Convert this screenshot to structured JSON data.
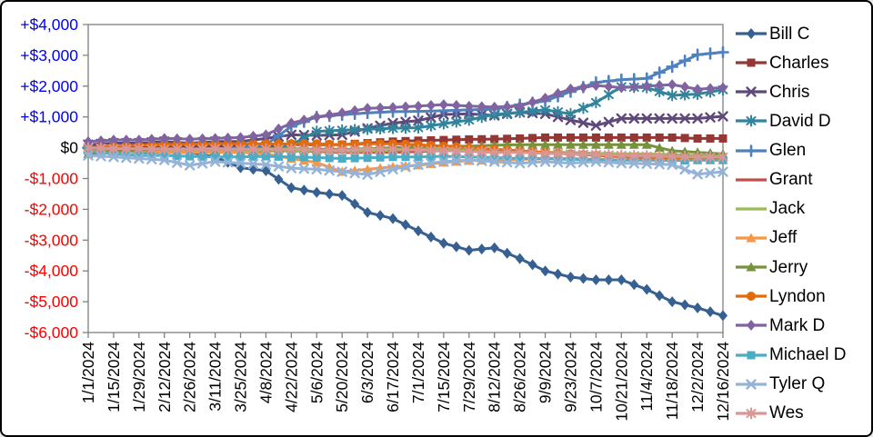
{
  "chart_data": {
    "type": "line",
    "title": "",
    "xlabel": "",
    "ylabel": "",
    "grid": false,
    "legend_position": "right",
    "ylim": [
      -6000,
      4000
    ],
    "y_ticks": [
      {
        "label": "+$4,000",
        "value": 4000
      },
      {
        "label": "+$3,000",
        "value": 3000
      },
      {
        "label": "+$2,000",
        "value": 2000
      },
      {
        "label": "+$1,000",
        "value": 1000
      },
      {
        "label": "$0",
        "value": 0
      },
      {
        "label": "-$1,000",
        "value": -1000
      },
      {
        "label": "-$2,000",
        "value": -2000
      },
      {
        "label": "-$3,000",
        "value": -3000
      },
      {
        "label": "-$4,000",
        "value": -4000
      },
      {
        "label": "-$5,000",
        "value": -5000
      },
      {
        "label": "-$6,000",
        "value": -6000
      }
    ],
    "axis_label_colors": {
      "positive": "#0000ff",
      "zero": "#000000",
      "negative": "#ff0000",
      "x_labels": "#000000"
    },
    "categories": [
      "1/1/2024",
      "1/15/2024",
      "1/29/2024",
      "2/12/2024",
      "2/26/2024",
      "3/11/2024",
      "3/25/2024",
      "4/8/2024",
      "4/22/2024",
      "5/6/2024",
      "5/20/2024",
      "6/3/2024",
      "6/17/2024",
      "7/1/2024",
      "7/15/2024",
      "7/29/2024",
      "8/12/2024",
      "8/26/2024",
      "9/9/2024",
      "9/23/2024",
      "10/7/2024",
      "10/21/2024",
      "11/4/2024",
      "11/18/2024",
      "12/2/2024",
      "12/16/2024"
    ],
    "series": [
      {
        "name": "Bill C",
        "color": "#366092",
        "marker": "diamond",
        "values": [
          50,
          0,
          -50,
          -100,
          -150,
          -300,
          -650,
          -750,
          -1300,
          -1450,
          -1550,
          -2100,
          -2300,
          -2700,
          -3100,
          -3330,
          -3250,
          -3600,
          -4000,
          -4200,
          -4290,
          -4290,
          -4600,
          -5000,
          -5200,
          -5450
        ]
      },
      {
        "name": "Charles",
        "color": "#953735",
        "marker": "square",
        "values": [
          0,
          0,
          50,
          50,
          50,
          50,
          50,
          50,
          100,
          100,
          100,
          150,
          200,
          230,
          250,
          270,
          280,
          300,
          330,
          330,
          330,
          330,
          330,
          330,
          300,
          300
        ]
      },
      {
        "name": "Chris",
        "color": "#5F497A",
        "marker": "x",
        "values": [
          100,
          150,
          150,
          200,
          150,
          200,
          200,
          300,
          420,
          400,
          420,
          630,
          800,
          880,
          1080,
          1100,
          1050,
          1150,
          1100,
          900,
          720,
          950,
          950,
          950,
          950,
          1020
        ]
      },
      {
        "name": "David D",
        "color": "#31849B",
        "marker": "asterisk",
        "values": [
          -50,
          -100,
          -150,
          -150,
          -150,
          -100,
          -150,
          -100,
          100,
          530,
          570,
          600,
          630,
          650,
          780,
          900,
          1080,
          1150,
          1230,
          1100,
          1470,
          1980,
          1950,
          1700,
          1740,
          1880
        ]
      },
      {
        "name": "Glen",
        "color": "#4F81BD",
        "marker": "plus",
        "values": [
          0,
          -50,
          -50,
          -100,
          -100,
          -50,
          0,
          100,
          690,
          1000,
          1070,
          1130,
          1170,
          1180,
          1200,
          1230,
          1250,
          1400,
          1520,
          1820,
          2120,
          2210,
          2250,
          2630,
          3020,
          3100
        ]
      },
      {
        "name": "Grant",
        "color": "#C0504D",
        "marker": "none",
        "values": [
          -50,
          -80,
          -100,
          -100,
          -120,
          -100,
          -120,
          -100,
          -100,
          -120,
          -150,
          -150,
          -150,
          -120,
          -100,
          -100,
          -120,
          -150,
          -180,
          -200,
          -220,
          -250,
          -250,
          -280,
          -300,
          -300
        ]
      },
      {
        "name": "Jack",
        "color": "#9BBB59",
        "marker": "none",
        "values": [
          -100,
          -150,
          -120,
          -100,
          -100,
          -80,
          -100,
          -80,
          -80,
          -100,
          -120,
          -100,
          -80,
          -50,
          -50,
          -80,
          -100,
          -120,
          -150,
          -150,
          -180,
          -200,
          -200,
          -220,
          -250,
          -250
        ]
      },
      {
        "name": "Jeff",
        "color": "#F79646",
        "marker": "triangle",
        "values": [
          0,
          -50,
          -100,
          -150,
          -150,
          -150,
          -150,
          -200,
          -350,
          -480,
          -780,
          -700,
          -620,
          -570,
          -480,
          -420,
          -400,
          -380,
          -350,
          -350,
          -380,
          -400,
          -380,
          -350,
          -400,
          -400
        ]
      },
      {
        "name": "Jerry",
        "color": "#76923C",
        "marker": "triangle",
        "values": [
          -200,
          -120,
          -80,
          -50,
          -50,
          -30,
          -50,
          -30,
          -30,
          -50,
          -50,
          -30,
          0,
          30,
          50,
          50,
          80,
          100,
          100,
          100,
          100,
          100,
          100,
          -100,
          -150,
          -200
        ]
      },
      {
        "name": "Lyndon",
        "color": "#E36C0A",
        "marker": "circle",
        "values": [
          0,
          50,
          80,
          100,
          120,
          130,
          130,
          130,
          130,
          130,
          100,
          130,
          130,
          100,
          50,
          0,
          -50,
          -100,
          -150,
          -200,
          -250,
          -300,
          -320,
          -350,
          -370,
          -370
        ]
      },
      {
        "name": "Mark D",
        "color": "#8064A2",
        "marker": "diamond",
        "values": [
          200,
          250,
          250,
          300,
          280,
          300,
          330,
          420,
          800,
          1000,
          1130,
          1280,
          1310,
          1350,
          1400,
          1350,
          1320,
          1350,
          1610,
          1910,
          2020,
          1950,
          2000,
          2050,
          1900,
          1950
        ]
      },
      {
        "name": "Michael D",
        "color": "#4BACC6",
        "marker": "square",
        "values": [
          -100,
          -200,
          -250,
          -250,
          -280,
          -300,
          -300,
          -280,
          -300,
          -320,
          -350,
          -330,
          -300,
          -300,
          -280,
          -300,
          -320,
          -350,
          -350,
          -380,
          -380,
          -400,
          -400,
          -420,
          -400,
          -400
        ]
      },
      {
        "name": "Tyler Q",
        "color": "#95B3D7",
        "marker": "x",
        "values": [
          -250,
          -300,
          -350,
          -400,
          -570,
          -450,
          -500,
          -550,
          -660,
          -700,
          -780,
          -870,
          -700,
          -550,
          -450,
          -400,
          -450,
          -500,
          -450,
          -500,
          -450,
          -500,
          -520,
          -550,
          -860,
          -780
        ]
      },
      {
        "name": "Wes",
        "color": "#D99694",
        "marker": "asterisk",
        "values": [
          0,
          -30,
          -30,
          -50,
          -50,
          -30,
          -50,
          -50,
          -50,
          -80,
          -80,
          -50,
          -50,
          -80,
          -100,
          -120,
          -150,
          -150,
          -180,
          -200,
          -220,
          -250,
          -270,
          -280,
          -300,
          -300
        ]
      }
    ]
  }
}
